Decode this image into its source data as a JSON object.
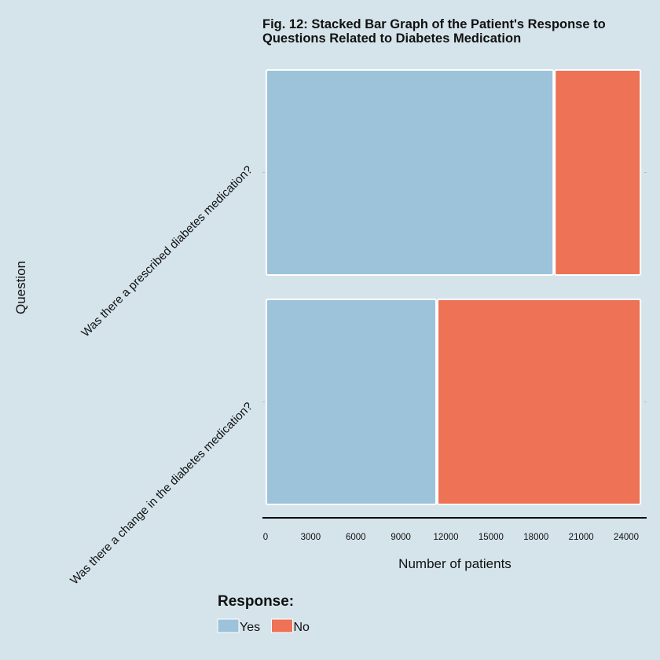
{
  "chart_data": {
    "type": "bar",
    "orientation": "horizontal",
    "stacked": true,
    "title": "Fig. 12: Stacked Bar Graph of the Patient's Response to Questions Related to Diabetes Medication",
    "title_lines": [
      "Fig. 12: Stacked Bar Graph of the Patient's Response to",
      "Questions Related to Diabetes Medication"
    ],
    "xlabel": "Number of patients",
    "ylabel": "Question",
    "xlim": [
      0,
      25200
    ],
    "xticks": [
      "0",
      "3000",
      "6000",
      "9000",
      "12000",
      "15000",
      "18000",
      "21000",
      "24000"
    ],
    "categories": [
      "Was there a prescribed diabetes medication?",
      "Was there a change in the diabetes medication?"
    ],
    "series": [
      {
        "name": "Yes",
        "color": "#9cc3da",
        "values": [
          19200,
          11400
        ]
      },
      {
        "name": "No",
        "color": "#ed7256",
        "values": [
          5800,
          13600
        ]
      }
    ],
    "legend": {
      "title": "Response:",
      "position": "bottom"
    },
    "grid": false
  }
}
